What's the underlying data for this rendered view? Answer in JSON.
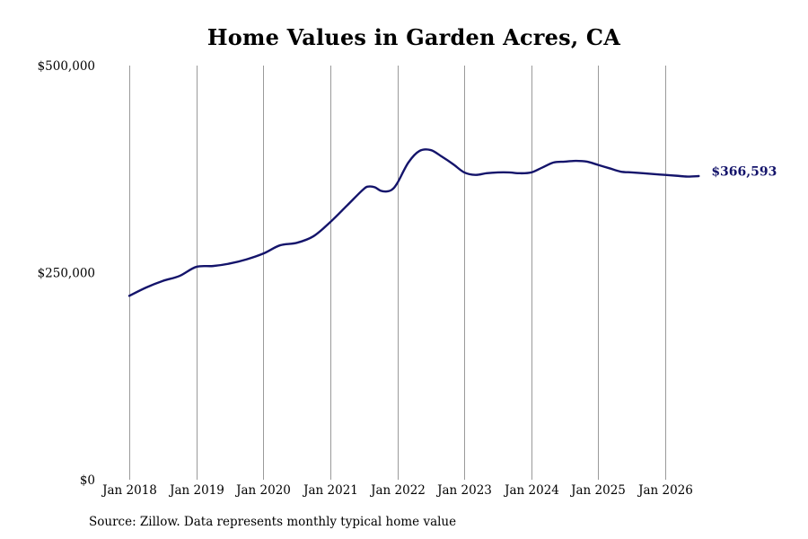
{
  "page": {
    "title": "Home Values in Garden Acres, CA",
    "source": "Source: Zillow. Data represents monthly typical home value"
  },
  "colors": {
    "line": "#14146b",
    "grid": "#9a9a9a"
  },
  "chart_data": {
    "type": "line",
    "title": "Home Values in Garden Acres, CA",
    "xlabel": "",
    "ylabel": "",
    "grid": "vertical lines at year ticks",
    "ylim": [
      0,
      500000
    ],
    "xlim": [
      "2018-01",
      "2026-07"
    ],
    "y_ticks": [
      0,
      250000,
      500000
    ],
    "y_tick_labels": [
      "$0",
      "$250,000",
      "$500,000"
    ],
    "x_ticks": [
      "2018-01",
      "2019-01",
      "2020-01",
      "2021-01",
      "2022-01",
      "2023-01",
      "2024-01",
      "2025-01",
      "2026-01"
    ],
    "x_tick_labels": [
      "Jan 2018",
      "Jan 2019",
      "Jan 2020",
      "Jan 2021",
      "Jan 2022",
      "Jan 2023",
      "Jan 2024",
      "Jan 2025",
      "Jan 2026"
    ],
    "end_label": "$366,593",
    "series": [
      {
        "x": [
          "2018-01",
          "2018-04",
          "2018-07",
          "2018-10",
          "2019-01",
          "2019-04",
          "2019-07",
          "2019-10",
          "2020-01",
          "2020-04",
          "2020-07",
          "2020-10",
          "2021-01",
          "2021-04",
          "2021-07",
          "2021-08",
          "2021-09",
          "2021-10",
          "2021-11",
          "2021-12",
          "2022-01",
          "2022-03",
          "2022-05",
          "2022-07",
          "2022-09",
          "2022-11",
          "2023-01",
          "2023-03",
          "2023-05",
          "2023-07",
          "2023-09",
          "2023-11",
          "2024-01",
          "2024-03",
          "2024-05",
          "2024-07",
          "2024-09",
          "2024-11",
          "2025-01",
          "2025-03",
          "2025-05",
          "2025-07",
          "2025-09",
          "2025-11",
          "2026-01",
          "2026-03",
          "2026-05",
          "2026-07"
        ],
        "values": [
          222000,
          232000,
          240000,
          246000,
          257000,
          258000,
          261000,
          266000,
          273000,
          283000,
          286000,
          294000,
          311000,
          331000,
          351000,
          354000,
          353000,
          349000,
          348000,
          350000,
          358000,
          383000,
          397000,
          398000,
          390000,
          381000,
          371000,
          368000,
          370000,
          371000,
          371000,
          370000,
          371000,
          377000,
          383000,
          384000,
          385000,
          384000,
          380000,
          376000,
          372000,
          371000,
          370000,
          369000,
          368000,
          367000,
          366000,
          366593
        ]
      }
    ]
  }
}
